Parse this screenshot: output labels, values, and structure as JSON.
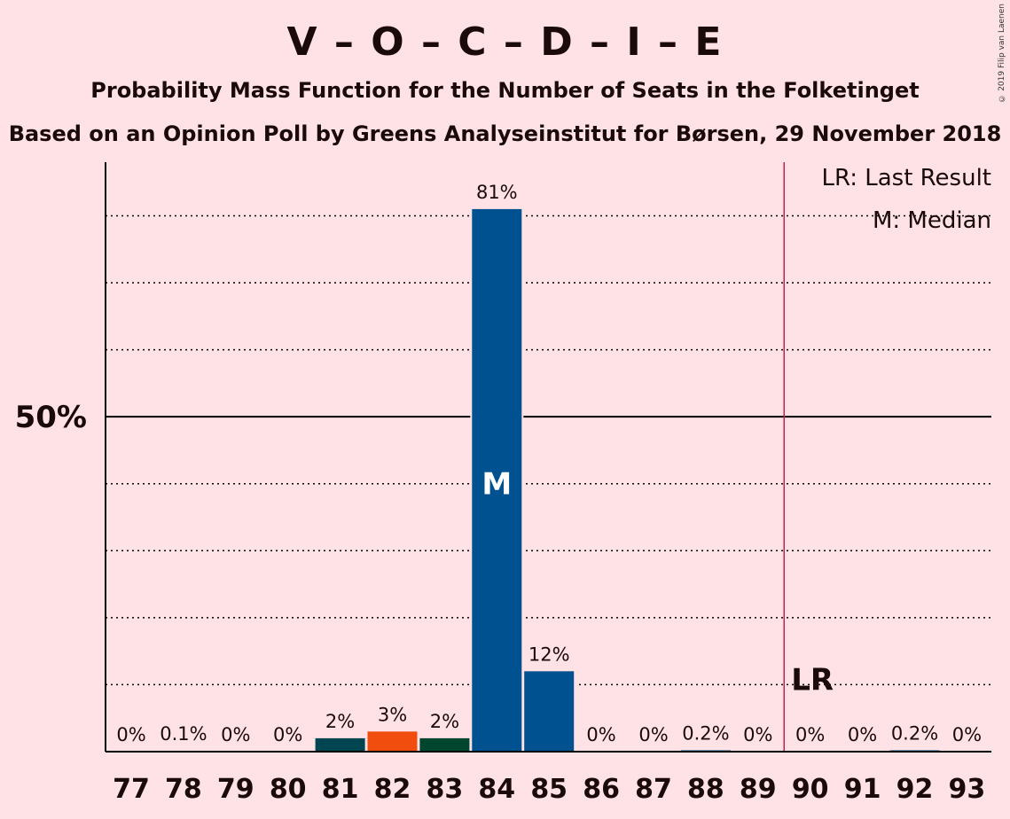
{
  "header": {
    "title": "V – O – C – D – I – E",
    "subtitle1": "Probability Mass Function for the Number of Seats in the Folketinget",
    "subtitle2": "Based on an Opinion Poll by Greens Analyseinstitut for Børsen, 29 November 2018",
    "copyright": "© 2019 Filip van Laenen"
  },
  "legend": {
    "last_result": "LR: Last Result",
    "median": "M: Median"
  },
  "colors": {
    "background": "#FFE2E6",
    "last_result_line": "#C0244A",
    "axis": "#000000"
  },
  "chart_data": {
    "type": "bar",
    "categories": [
      "77",
      "78",
      "79",
      "80",
      "81",
      "82",
      "83",
      "84",
      "85",
      "86",
      "87",
      "88",
      "89",
      "90",
      "91",
      "92",
      "93"
    ],
    "values": [
      0,
      0.1,
      0,
      0,
      2,
      3,
      2,
      81,
      12,
      0,
      0,
      0.2,
      0,
      0,
      0,
      0.2,
      0
    ],
    "labels": [
      "0%",
      "0.1%",
      "0%",
      "0%",
      "2%",
      "3%",
      "2%",
      "81%",
      "12%",
      "0%",
      "0%",
      "0.2%",
      "0%",
      "0%",
      "0%",
      "0.2%",
      "0%"
    ],
    "bar_colors": [
      "#00518F",
      "#00518F",
      "#00518F",
      "#00518F",
      "#004550",
      "#F04D0F",
      "#00452E",
      "#00518F",
      "#00518F",
      "#00518F",
      "#00518F",
      "#00518F",
      "#00518F",
      "#00518F",
      "#00518F",
      "#00518F",
      "#00518F"
    ],
    "ylim": [
      0,
      88
    ],
    "y_tick_label": "50%",
    "y_tick_value": 50,
    "dotted_gridlines": [
      10,
      20,
      30,
      40,
      60,
      70,
      80
    ],
    "median_seat": "84",
    "median_mark": "M",
    "last_result_seat": "90",
    "last_result_mark": "LR",
    "legend_position": "top-right"
  }
}
